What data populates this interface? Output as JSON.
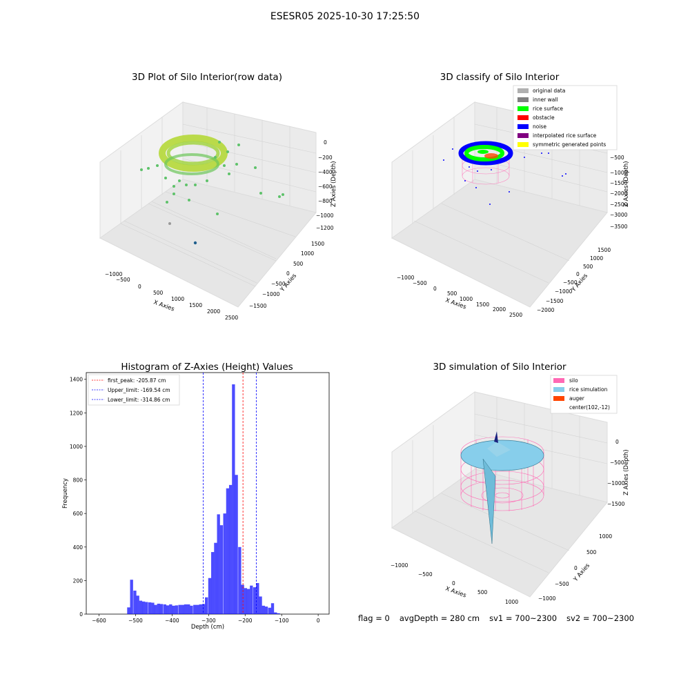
{
  "figure": {
    "suptitle": "ESESR05 2025-10-30 17:25:50",
    "footer": {
      "flag": "flag = 0",
      "avg_depth": "avgDepth = 280 cm",
      "sv1": "sv1 = 700~2300",
      "sv2": "sv2 = 700~2300"
    }
  },
  "colors": {
    "hist_bar": "#0000ff",
    "first_peak": "#ff0000",
    "limit": "#0000ff",
    "silo": "#ff69b4",
    "rice_simulation": "#87ceeb",
    "auger": "#ff4500",
    "rice_surface": "#00ff00",
    "noise": "#0000ff",
    "inner_wall": "#808080",
    "original_data": "#b0b0b0",
    "obstacle": "#ff0000",
    "interpolated_rice_surface": "#800080",
    "symmetric_generated_points": "#ffff00"
  },
  "plot1": {
    "title": "3D Plot of Silo Interior(row data)",
    "xlabel": "X Axies",
    "ylabel": "Y Axies",
    "zlabel": "Z Axies (Depth)",
    "xticks": [
      "−1000",
      "−500",
      "0",
      "500",
      "1000",
      "1500",
      "2000",
      "2500"
    ],
    "yticks": [
      "1500",
      "1000",
      "500",
      "0",
      "−500",
      "−1000",
      "−1500"
    ],
    "zticks": [
      "0",
      "−200",
      "−400",
      "−600",
      "−800",
      "−1000",
      "−1200"
    ]
  },
  "plot2": {
    "title": "3D classify of Silo Interior",
    "xlabel": "X Axies",
    "ylabel": "Y Axies",
    "zlabel": "Z Axies (Depth)",
    "xticks": [
      "−1000",
      "−500",
      "0",
      "500",
      "1000",
      "1500",
      "2000",
      "2500"
    ],
    "yticks": [
      "1500",
      "1000",
      "500",
      "0",
      "−500",
      "−1000",
      "−1500",
      "−2000"
    ],
    "zticks": [
      "−500",
      "−1000",
      "−1500",
      "−2000",
      "−2500",
      "−3000",
      "−3500"
    ],
    "legend": [
      {
        "label": "original data",
        "color": "#b0b0b0"
      },
      {
        "label": "inner wall",
        "color": "#808080"
      },
      {
        "label": "rice surface",
        "color": "#00ff00"
      },
      {
        "label": "obstacle",
        "color": "#ff0000"
      },
      {
        "label": "noise",
        "color": "#0000ff"
      },
      {
        "label": "interpolated rice surface",
        "color": "#800080"
      },
      {
        "label": "symmetric generated points",
        "color": "#ffff00"
      }
    ]
  },
  "plot4": {
    "title": "3D simulation of Silo Interior",
    "xlabel": "X Axies",
    "ylabel": "Y Axies",
    "zlabel": "Z Axies (Depth)",
    "xticks": [
      "−1000",
      "−500",
      "0",
      "500",
      "1000"
    ],
    "yticks": [
      "1000",
      "500",
      "0",
      "−500",
      "−1000"
    ],
    "zticks": [
      "0",
      "−500",
      "−1000",
      "−1500"
    ],
    "legend": [
      {
        "label": "silo",
        "color": "#ff69b4"
      },
      {
        "label": "rice simulation",
        "color": "#87ceeb"
      },
      {
        "label": "auger",
        "color": "#ff4500"
      },
      {
        "label": "center(102,-12)",
        "color": ""
      }
    ]
  },
  "chart_data": {
    "type": "bar",
    "title": "Histogram of Z-Axies (Height) Values",
    "xlabel": "Depth (cm)",
    "ylabel": "Frequency",
    "xlim": [
      -635,
      30
    ],
    "ylim": [
      0,
      1440
    ],
    "xticks": [
      -600,
      -500,
      -400,
      -300,
      -200,
      -100,
      0
    ],
    "yticks": [
      0,
      200,
      400,
      600,
      800,
      1000,
      1200,
      1400
    ],
    "bin_width": 8.2,
    "bins": [
      [
        -523,
        40
      ],
      [
        -515,
        205
      ],
      [
        -506,
        140
      ],
      [
        -498,
        110
      ],
      [
        -490,
        80
      ],
      [
        -482,
        75
      ],
      [
        -474,
        72
      ],
      [
        -465,
        70
      ],
      [
        -457,
        68
      ],
      [
        -449,
        55
      ],
      [
        -441,
        62
      ],
      [
        -433,
        60
      ],
      [
        -424,
        58
      ],
      [
        -416,
        52
      ],
      [
        -408,
        58
      ],
      [
        -400,
        50
      ],
      [
        -392,
        52
      ],
      [
        -383,
        55
      ],
      [
        -375,
        55
      ],
      [
        -367,
        58
      ],
      [
        -359,
        58
      ],
      [
        -351,
        50
      ],
      [
        -342,
        55
      ],
      [
        -334,
        55
      ],
      [
        -326,
        58
      ],
      [
        -318,
        60
      ],
      [
        -310,
        100
      ],
      [
        -301,
        215
      ],
      [
        -293,
        370
      ],
      [
        -285,
        425
      ],
      [
        -277,
        595
      ],
      [
        -269,
        530
      ],
      [
        -260,
        600
      ],
      [
        -252,
        750
      ],
      [
        -244,
        770
      ],
      [
        -236,
        1370
      ],
      [
        -228,
        830
      ],
      [
        -219,
        400
      ],
      [
        -211,
        175
      ],
      [
        -203,
        155
      ],
      [
        -195,
        150
      ],
      [
        -187,
        170
      ],
      [
        -178,
        160
      ],
      [
        -170,
        185
      ],
      [
        -162,
        105
      ],
      [
        -154,
        50
      ],
      [
        -146,
        45
      ],
      [
        -137,
        38
      ],
      [
        -129,
        65
      ],
      [
        -121,
        10
      ],
      [
        -113,
        5
      ]
    ],
    "lines": [
      {
        "label": "first_peak: -205.87 cm",
        "x": -205.87,
        "color": "#ff0000"
      },
      {
        "label": "Upper_limit: -169.54 cm",
        "x": -169.54,
        "color": "#0000ff"
      },
      {
        "label": "Lower_limit: -314.86 cm",
        "x": -314.86,
        "color": "#0000ff"
      }
    ],
    "grid": false,
    "legend_position": "top-left"
  }
}
